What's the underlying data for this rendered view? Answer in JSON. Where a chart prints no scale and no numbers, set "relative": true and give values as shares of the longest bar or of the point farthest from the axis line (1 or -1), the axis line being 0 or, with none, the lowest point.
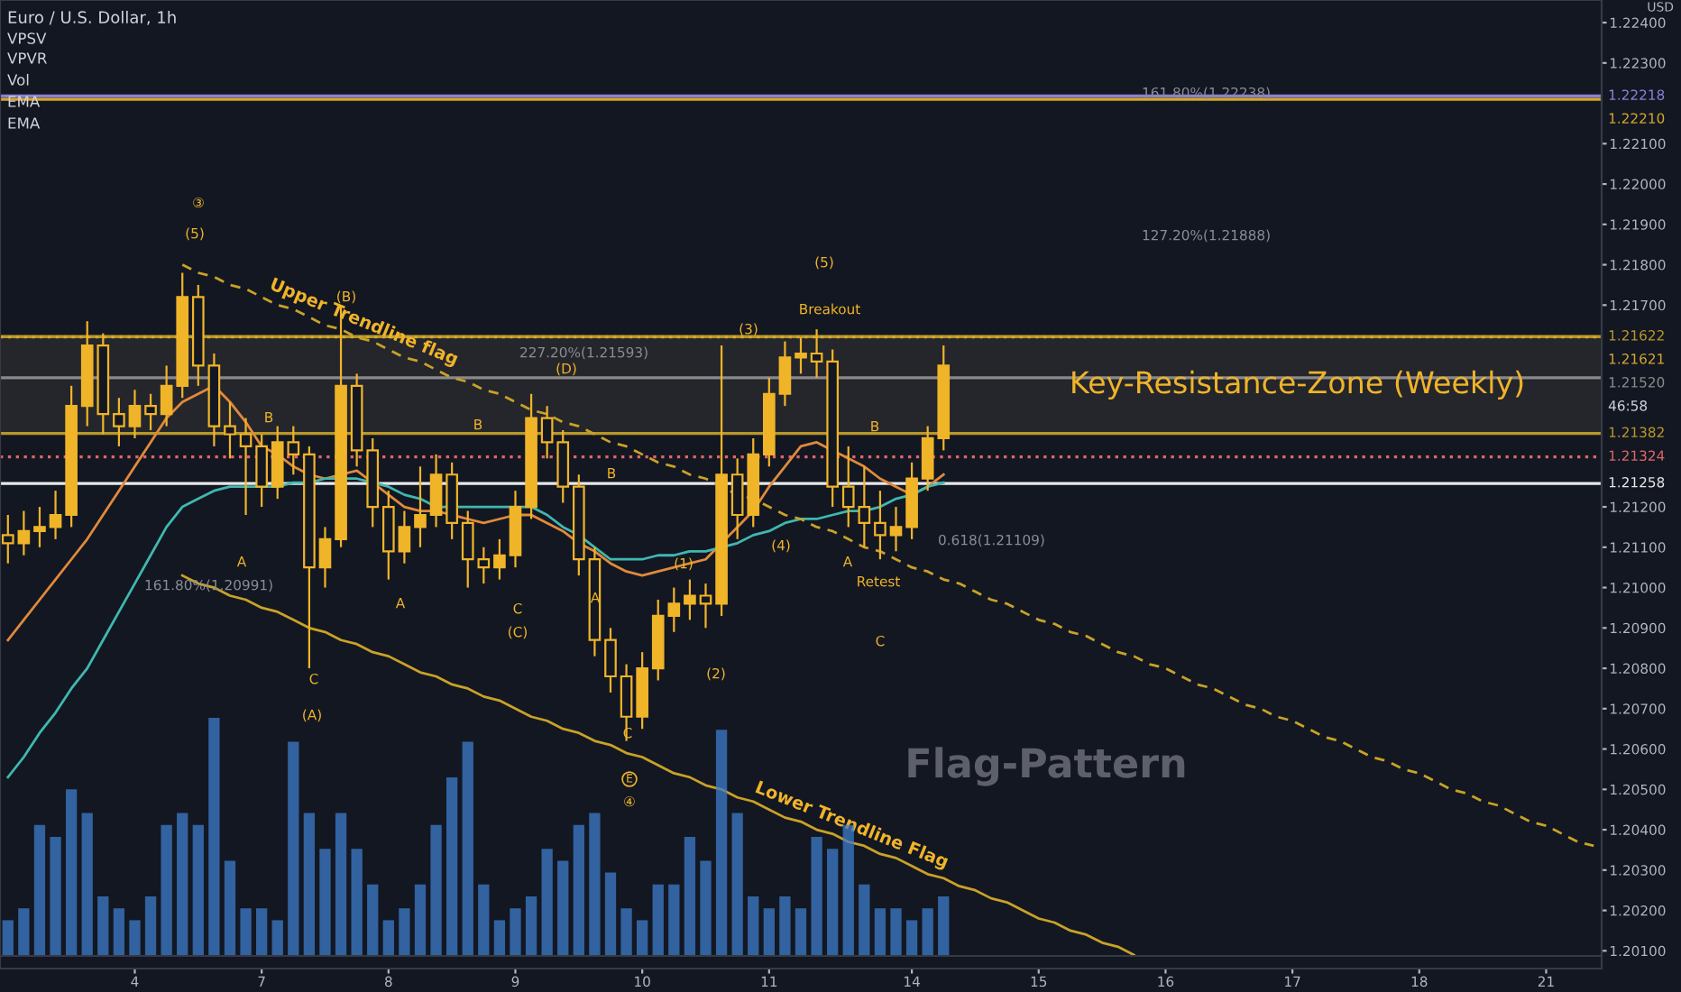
{
  "chart_data": [
    {
      "type": "candlestick",
      "title": "Euro / U.S. Dollar, 1h",
      "ylabel": "USD",
      "color": "#f0b429",
      "categories": [
        null,
        null,
        null,
        null,
        null,
        null,
        null,
        null,
        "4",
        null,
        null,
        null,
        null,
        null,
        null,
        null,
        "7",
        null,
        null,
        null,
        null,
        null,
        null,
        null,
        "8",
        null,
        null,
        null,
        null,
        null,
        null,
        null,
        "9",
        null,
        null,
        null,
        null,
        null,
        null,
        null,
        "10",
        null,
        null,
        null,
        null,
        null,
        null,
        null,
        "11",
        null,
        null,
        null,
        null,
        null,
        null,
        null,
        null,
        "14",
        null,
        null,
        null,
        null,
        null,
        null,
        null,
        "15",
        null,
        null,
        null,
        null,
        null,
        null,
        null,
        "16",
        null,
        null,
        null,
        null,
        null,
        null,
        null,
        "17",
        null,
        null,
        null,
        null,
        null,
        null,
        null,
        "18",
        null,
        null,
        null,
        null,
        null,
        null,
        null,
        "21",
        null,
        null,
        null
      ],
      "ohlc": [
        [
          1.2113,
          1.2118,
          1.2106,
          1.2111
        ],
        [
          1.2111,
          1.2119,
          1.2108,
          1.2114
        ],
        [
          1.2114,
          1.212,
          1.211,
          1.2115
        ],
        [
          1.2115,
          1.2124,
          1.2112,
          1.2118
        ],
        [
          1.2118,
          1.215,
          1.2115,
          1.2145
        ],
        [
          1.2145,
          1.2166,
          1.214,
          1.216
        ],
        [
          1.216,
          1.2163,
          1.2138,
          1.2143
        ],
        [
          1.2143,
          1.2147,
          1.2135,
          1.214
        ],
        [
          1.214,
          1.2149,
          1.2137,
          1.2145
        ],
        [
          1.2145,
          1.2148,
          1.2139,
          1.2143
        ],
        [
          1.2143,
          1.2155,
          1.214,
          1.215
        ],
        [
          1.215,
          1.2178,
          1.2147,
          1.2172
        ],
        [
          1.2172,
          1.2175,
          1.215,
          1.2155
        ],
        [
          1.2155,
          1.2158,
          1.2135,
          1.214
        ],
        [
          1.214,
          1.2146,
          1.2132,
          1.2138
        ],
        [
          1.2138,
          1.2142,
          1.2118,
          1.2135
        ],
        [
          1.2135,
          1.2138,
          1.212,
          1.2125
        ],
        [
          1.2125,
          1.214,
          1.2122,
          1.2136
        ],
        [
          1.2136,
          1.214,
          1.2128,
          1.2133
        ],
        [
          1.2133,
          1.2135,
          1.208,
          1.2105
        ],
        [
          1.2105,
          1.2115,
          1.21,
          1.2112
        ],
        [
          1.2112,
          1.217,
          1.211,
          1.215
        ],
        [
          1.215,
          1.2153,
          1.213,
          1.2134
        ],
        [
          1.2134,
          1.2137,
          1.2115,
          1.212
        ],
        [
          1.212,
          1.2124,
          1.2102,
          1.2109
        ],
        [
          1.2109,
          1.2119,
          1.2106,
          1.2115
        ],
        [
          1.2115,
          1.213,
          1.211,
          1.2118
        ],
        [
          1.2118,
          1.2133,
          1.2115,
          1.2128
        ],
        [
          1.2128,
          1.2131,
          1.2112,
          1.2116
        ],
        [
          1.2116,
          1.2119,
          1.21,
          1.2107
        ],
        [
          1.2107,
          1.211,
          1.2101,
          1.2105
        ],
        [
          1.2105,
          1.2112,
          1.2102,
          1.2108
        ],
        [
          1.2108,
          1.2124,
          1.2105,
          1.212
        ],
        [
          1.212,
          1.2148,
          1.2117,
          1.2142
        ],
        [
          1.2142,
          1.2145,
          1.2132,
          1.2136
        ],
        [
          1.2136,
          1.2139,
          1.2121,
          1.2125
        ],
        [
          1.2125,
          1.2128,
          1.2103,
          1.2107
        ],
        [
          1.2107,
          1.211,
          1.2083,
          1.2087
        ],
        [
          1.2087,
          1.209,
          1.2074,
          1.2078
        ],
        [
          1.2078,
          1.2081,
          1.2062,
          1.2068
        ],
        [
          1.2068,
          1.2084,
          1.2065,
          1.208
        ],
        [
          1.208,
          1.2097,
          1.2077,
          1.2093
        ],
        [
          1.2093,
          1.21,
          1.2089,
          1.2096
        ],
        [
          1.2096,
          1.2102,
          1.2092,
          1.2098
        ],
        [
          1.2098,
          1.2101,
          1.209,
          1.2096
        ],
        [
          1.2096,
          1.216,
          1.2093,
          1.2128
        ],
        [
          1.2128,
          1.2132,
          1.2112,
          1.2118
        ],
        [
          1.2118,
          1.2137,
          1.2115,
          1.2133
        ],
        [
          1.2133,
          1.2152,
          1.213,
          1.2148
        ],
        [
          1.2148,
          1.2161,
          1.2145,
          1.2157
        ],
        [
          1.2157,
          1.2162,
          1.2153,
          1.2158
        ],
        [
          1.2158,
          1.2164,
          1.2152,
          1.2156
        ],
        [
          1.2156,
          1.2159,
          1.212,
          1.2125
        ],
        [
          1.2125,
          1.2135,
          1.2115,
          1.212
        ],
        [
          1.212,
          1.213,
          1.211,
          1.2116
        ],
        [
          1.2116,
          1.2124,
          1.2107,
          1.2113
        ],
        [
          1.2113,
          1.212,
          1.2109,
          1.2115
        ],
        [
          1.2115,
          1.2131,
          1.2112,
          1.2127
        ],
        [
          1.2127,
          1.214,
          1.2124,
          1.2137
        ],
        [
          1.2137,
          1.216,
          1.2134,
          1.2155
        ],
        null,
        null,
        null,
        null,
        null,
        null,
        null,
        null,
        null,
        null,
        null,
        null,
        null,
        null,
        null,
        null,
        null,
        null,
        null,
        null,
        null,
        null,
        null,
        null,
        null,
        null,
        null,
        null,
        null,
        null,
        null,
        null,
        null,
        null,
        null,
        null,
        null,
        null,
        null,
        null,
        null
      ],
      "series": [
        {
          "type": "line",
          "color": "#e08a3c",
          "values": [
            1.2087,
            1.2092,
            1.2097,
            1.2102,
            1.2107,
            1.2112,
            1.2118,
            1.2124,
            1.213,
            1.2136,
            1.2142,
            1.2146,
            1.2148,
            1.215,
            1.2146,
            1.2141,
            1.2135,
            1.2133,
            1.213,
            1.2128,
            1.2127,
            1.2128,
            1.2129,
            1.2126,
            1.2123,
            1.212,
            1.2119,
            1.2119,
            1.2118,
            1.2117,
            1.2116,
            1.2117,
            1.2118,
            1.2118,
            1.2116,
            1.2114,
            1.2111,
            1.2109,
            1.2106,
            1.2104,
            1.2103,
            1.2104,
            1.2105,
            1.2106,
            1.2107,
            1.2111,
            1.2115,
            1.2119,
            1.2125,
            1.213,
            1.2135,
            1.2136,
            1.2134,
            1.2132,
            1.213,
            1.2127,
            1.2125,
            1.2123,
            1.2125,
            1.2128,
            null,
            null,
            null,
            null,
            null,
            null,
            null,
            null,
            null,
            null,
            null,
            null,
            null,
            null,
            null,
            null,
            null,
            null,
            null,
            null,
            null,
            null,
            null,
            null,
            null,
            null,
            null,
            null,
            null,
            null,
            null,
            null,
            null,
            null,
            null,
            null,
            null,
            null,
            null,
            null,
            null
          ]
        },
        {
          "type": "line",
          "color": "#3fb8af",
          "values": [
            1.2053,
            1.2058,
            1.2064,
            1.2069,
            1.2075,
            1.208,
            1.2087,
            1.2094,
            1.2101,
            1.2108,
            1.2115,
            1.212,
            1.2122,
            1.2124,
            1.2125,
            1.2125,
            1.2125,
            1.2125,
            1.2126,
            1.2126,
            1.2127,
            1.2127,
            1.2127,
            1.2126,
            1.2125,
            1.2123,
            1.2122,
            1.212,
            1.212,
            1.212,
            1.212,
            1.212,
            1.212,
            1.212,
            1.2118,
            1.2115,
            1.2113,
            1.211,
            1.2107,
            1.2107,
            1.2107,
            1.2108,
            1.2108,
            1.2109,
            1.2109,
            1.211,
            1.2111,
            1.2113,
            1.2114,
            1.2116,
            1.2117,
            1.2117,
            1.2118,
            1.2119,
            1.2119,
            1.212,
            1.2122,
            1.2123,
            1.2125,
            1.2126,
            null,
            null,
            null,
            null,
            null,
            null,
            null,
            null,
            null,
            null,
            null,
            null,
            null,
            null,
            null,
            null,
            null,
            null,
            null,
            null,
            null,
            null,
            null,
            null,
            null,
            null,
            null,
            null,
            null,
            null,
            null,
            null,
            null,
            null,
            null,
            null,
            null,
            null,
            null,
            null,
            null
          ]
        },
        {
          "type": "line",
          "name": "Upper Trendline flag",
          "color": "#c9a227",
          "line_style": "dashed",
          "values": [
            null,
            null,
            null,
            null,
            null,
            null,
            null,
            null,
            null,
            null,
            null,
            1.218,
            1.2178,
            1.2177,
            1.2175,
            1.2174,
            1.2172,
            1.217,
            1.2169,
            1.2167,
            1.2165,
            1.2164,
            1.2162,
            1.2161,
            1.2159,
            1.2157,
            1.2156,
            1.2154,
            1.2152,
            1.2151,
            1.2149,
            1.2148,
            1.2146,
            1.2144,
            1.2143,
            1.2141,
            1.214,
            1.2138,
            1.2136,
            1.2135,
            1.2133,
            1.2131,
            1.213,
            1.2128,
            1.2127,
            1.2125,
            1.2123,
            1.2122,
            1.212,
            1.2118,
            1.2117,
            1.2115,
            1.2114,
            1.2112,
            1.211,
            1.2109,
            1.2107,
            1.2105,
            1.2104,
            1.2102,
            1.2101,
            1.2099,
            1.2097,
            1.2096,
            1.2094,
            1.2092,
            1.2091,
            1.2089,
            1.2088,
            1.2086,
            1.2084,
            1.2083,
            1.2081,
            1.208,
            1.2078,
            1.2076,
            1.2075,
            1.2073,
            1.2071,
            1.207,
            1.2068,
            1.2067,
            1.2065,
            1.2063,
            1.2062,
            1.206,
            1.2058,
            1.2057,
            1.2055,
            1.2054,
            1.2052,
            1.205,
            1.2049,
            1.2047,
            1.2046,
            1.2044,
            1.2042,
            1.2041,
            1.2039,
            1.2037,
            1.2036
          ]
        },
        {
          "type": "line",
          "name": "Lower Trendline Flag",
          "color": "#c9a227",
          "line_style": "solid",
          "values": [
            null,
            null,
            null,
            null,
            null,
            null,
            null,
            null,
            null,
            null,
            null,
            1.2103,
            1.2101,
            1.21,
            1.2098,
            1.2097,
            1.2095,
            1.2094,
            1.2092,
            1.209,
            1.2089,
            1.2087,
            1.2086,
            1.2084,
            1.2083,
            1.2081,
            1.2079,
            1.2078,
            1.2076,
            1.2075,
            1.2073,
            1.2072,
            1.207,
            1.2068,
            1.2067,
            1.2065,
            1.2064,
            1.2062,
            1.2061,
            1.2059,
            1.2058,
            1.2056,
            1.2054,
            1.2053,
            1.2051,
            1.205,
            1.2048,
            1.2047,
            1.2045,
            1.2043,
            1.2042,
            1.204,
            1.2039,
            1.2037,
            1.2036,
            1.2034,
            1.2033,
            1.2031,
            1.2029,
            1.2028,
            1.2026,
            1.2025,
            1.2023,
            1.2022,
            1.202,
            1.2018,
            1.2017,
            1.2015,
            1.2014,
            1.2012,
            1.2011,
            1.2009,
            null,
            null,
            null,
            null,
            null,
            null,
            null,
            null,
            null,
            null,
            null,
            null,
            null,
            null,
            null,
            null,
            null,
            null,
            null,
            null,
            null,
            null,
            null,
            null,
            null,
            null,
            null,
            null,
            null
          ]
        }
      ],
      "ylim": [
        1.20056,
        1.22456
      ],
      "yticks": [
        {
          "value": 1.224,
          "label": "1.22400"
        },
        {
          "value": 1.223,
          "label": "1.22300"
        },
        {
          "value": 1.221,
          "label": "1.22100"
        },
        {
          "value": 1.22,
          "label": "1.22000"
        },
        {
          "value": 1.219,
          "label": "1.21900"
        },
        {
          "value": 1.218,
          "label": "1.21800"
        },
        {
          "value": 1.217,
          "label": "1.21700"
        },
        {
          "value": 1.212,
          "label": "1.21200"
        },
        {
          "value": 1.211,
          "label": "1.21100"
        },
        {
          "value": 1.21,
          "label": "1.21000"
        },
        {
          "value": 1.209,
          "label": "1.20900"
        },
        {
          "value": 1.208,
          "label": "1.20800"
        },
        {
          "value": 1.207,
          "label": "1.20700"
        },
        {
          "value": 1.206,
          "label": "1.20600"
        },
        {
          "value": 1.205,
          "label": "1.20500"
        },
        {
          "value": 1.204,
          "label": "1.20400"
        },
        {
          "value": 1.203,
          "label": "1.20300"
        },
        {
          "value": 1.202,
          "label": "1.20200"
        },
        {
          "value": 1.201,
          "label": "1.20100"
        }
      ],
      "ref_lines": [
        {
          "axis": "y",
          "value": 1.22218,
          "label": "1.22218",
          "color": "#8e7fd6"
        },
        {
          "axis": "y",
          "value": 1.2221,
          "label": "1.22210",
          "color": "#d4a72c"
        },
        {
          "axis": "y",
          "value": 1.21622,
          "label": "1.21622",
          "color": "#b8972a"
        },
        {
          "axis": "y",
          "value": 1.21621,
          "label": "1.21621",
          "color": "#d4a72c",
          "line_style": "dotted"
        },
        {
          "axis": "y",
          "value": 1.2152,
          "label": "1.21520",
          "color": "#8a8a8a"
        },
        {
          "axis": "y",
          "value": 1.21382,
          "label": "1.21382",
          "color": "#b8972a"
        },
        {
          "axis": "y",
          "value": 1.21324,
          "label": "1.21324",
          "color": "#e06666",
          "line_style": "dotted"
        },
        {
          "axis": "y",
          "value": 1.21258,
          "label": "1.21258",
          "color": "#e8e8e8"
        }
      ],
      "bands": [
        {
          "axis": "y",
          "from": 1.21382,
          "to": 1.21622,
          "label": "Key-Resistance-Zone (Weekly)",
          "color": "#2a2a2e"
        }
      ],
      "annotations": [
        "VPSV",
        "VPVR",
        "Vol",
        "EMA",
        "EMA",
        "46:58",
        "③",
        "(5)",
        "(B)",
        "B",
        "A",
        "C",
        "(A)",
        "161.80%(1.20991)",
        "B",
        "A",
        "C",
        "(C)",
        "227.20%(1.21593)",
        "(D)",
        "B",
        "A",
        "C",
        "E",
        "④",
        "(1)",
        "(2)",
        "(3)",
        "(4)",
        "(5)",
        "Breakout",
        "B",
        "A",
        "Retest",
        "C",
        "0.618(1.21109)",
        "161.80%(1.22238)",
        "127.20%(1.21888)",
        "Flag-Pattern"
      ],
      "grid": false,
      "legend": false
    },
    {
      "type": "bar",
      "relative": true,
      "color": "#3d7cc9",
      "categories": [
        null,
        null,
        null,
        null,
        null,
        null,
        null,
        null,
        null,
        null,
        null,
        null,
        null,
        null,
        null,
        null,
        null,
        null,
        null,
        null,
        null,
        null,
        null,
        null,
        null,
        null,
        null,
        null,
        null,
        null,
        null,
        null,
        null,
        null,
        null,
        null,
        null,
        null,
        null,
        null,
        null,
        null,
        null,
        null,
        null,
        null,
        null,
        null,
        null,
        null,
        null,
        null,
        null,
        null,
        null,
        null,
        null,
        null,
        null,
        null,
        null,
        null,
        null,
        null,
        null,
        null,
        null,
        null,
        null,
        null,
        null,
        null,
        null,
        null,
        null,
        null,
        null,
        null,
        null,
        null,
        null,
        null,
        null,
        null,
        null,
        null,
        null,
        null,
        null,
        null,
        null,
        null,
        null,
        null,
        null,
        null,
        null,
        null,
        null,
        null,
        null
      ],
      "values": [
        0.15,
        0.2,
        0.55,
        0.5,
        0.7,
        0.6,
        0.25,
        0.2,
        0.15,
        0.25,
        0.55,
        0.6,
        0.55,
        1.0,
        0.4,
        0.2,
        0.2,
        0.15,
        0.9,
        0.6,
        0.45,
        0.6,
        0.45,
        0.3,
        0.15,
        0.2,
        0.3,
        0.55,
        0.75,
        0.9,
        0.3,
        0.15,
        0.2,
        0.25,
        0.45,
        0.4,
        0.55,
        0.6,
        0.35,
        0.2,
        0.15,
        0.3,
        0.3,
        0.5,
        0.4,
        0.95,
        0.6,
        0.25,
        0.2,
        0.25,
        0.2,
        0.5,
        0.45,
        0.55,
        0.3,
        0.2,
        0.2,
        0.15,
        0.2,
        0.25,
        null,
        null,
        null,
        null,
        null,
        null,
        null,
        null,
        null,
        null,
        null,
        null,
        null,
        null,
        null,
        null,
        null,
        null,
        null,
        null,
        null,
        null,
        null,
        null,
        null,
        null,
        null,
        null,
        null,
        null,
        null,
        null,
        null,
        null,
        null,
        null,
        null,
        null,
        null,
        null,
        null
      ]
    }
  ]
}
